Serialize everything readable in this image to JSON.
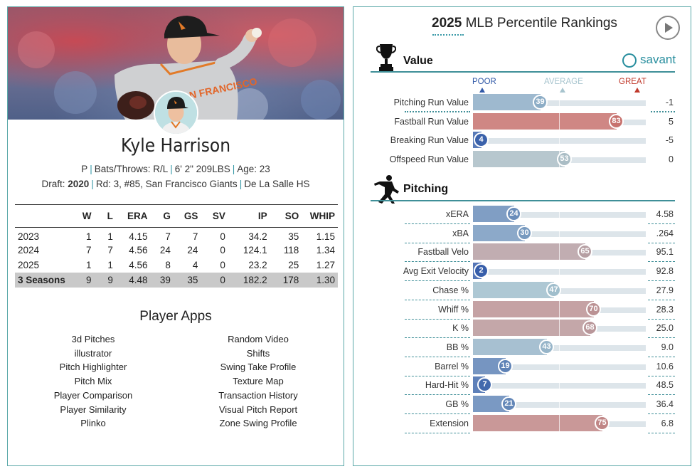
{
  "player": {
    "name": "Kyle Harrison",
    "position": "P",
    "bats_throws": "Bats/Throws: R/L",
    "height_weight": "6' 2\" 209LBS",
    "age": "Age: 23",
    "draft_prefix": "Draft:",
    "draft_year": "2020",
    "draft_pick": "Rd: 3, #85, San Francisco Giants",
    "school": "De La Salle HS",
    "jersey_text": "SAN FRANCISCO"
  },
  "stats_table": {
    "headers": [
      "",
      "W",
      "L",
      "ERA",
      "G",
      "GS",
      "SV",
      "IP",
      "SO",
      "WHIP"
    ],
    "rows": [
      [
        "2023",
        "1",
        "1",
        "4.15",
        "7",
        "7",
        "0",
        "34.2",
        "35",
        "1.15"
      ],
      [
        "2024",
        "7",
        "7",
        "4.56",
        "24",
        "24",
        "0",
        "124.1",
        "118",
        "1.34"
      ],
      [
        "2025",
        "1",
        "1",
        "4.56",
        "8",
        "4",
        "0",
        "23.2",
        "25",
        "1.27"
      ]
    ],
    "total": [
      "3 Seasons",
      "9",
      "9",
      "4.48",
      "39",
      "35",
      "0",
      "182.2",
      "178",
      "1.30"
    ]
  },
  "apps": {
    "title": "Player Apps",
    "left": [
      "3d Pitches",
      "illustrator",
      "Pitch Highlighter",
      "Pitch Mix",
      "Player Comparison",
      "Player Similarity",
      "Plinko"
    ],
    "right": [
      "Random Video",
      "Shifts",
      "Swing Take Profile",
      "Texture Map",
      "Transaction History",
      "Visual Pitch Report",
      "Zone Swing Profile"
    ]
  },
  "rankings": {
    "year": "2025",
    "title": "MLB Percentile Rankings",
    "brand": "savant",
    "scale": {
      "poor": "POOR",
      "average": "AVERAGE",
      "great": "GREAT"
    },
    "value_section": {
      "title": "Value",
      "metrics": [
        {
          "label": "Pitching Run Value",
          "pct": 39,
          "value": "-1"
        },
        {
          "label": "Fastball Run Value",
          "pct": 83,
          "value": "5"
        },
        {
          "label": "Breaking Run Value",
          "pct": 4,
          "value": "-5"
        },
        {
          "label": "Offspeed Run Value",
          "pct": 53,
          "value": "0"
        }
      ]
    },
    "pitching_section": {
      "title": "Pitching",
      "metrics": [
        {
          "label": "xERA",
          "pct": 24,
          "value": "4.58"
        },
        {
          "label": "xBA",
          "pct": 30,
          "value": ".264"
        },
        {
          "label": "Fastball Velo",
          "pct": 65,
          "value": "95.1"
        },
        {
          "label": "Avg Exit Velocity",
          "pct": 2,
          "value": "92.8"
        },
        {
          "label": "Chase %",
          "pct": 47,
          "value": "27.9"
        },
        {
          "label": "Whiff %",
          "pct": 70,
          "value": "28.3"
        },
        {
          "label": "K %",
          "pct": 68,
          "value": "25.0"
        },
        {
          "label": "BB %",
          "pct": 43,
          "value": "9.0"
        },
        {
          "label": "Barrel %",
          "pct": 19,
          "value": "10.6"
        },
        {
          "label": "Hard-Hit %",
          "pct": 7,
          "value": "48.5"
        },
        {
          "label": "GB %",
          "pct": 21,
          "value": "36.4"
        },
        {
          "label": "Extension",
          "pct": 75,
          "value": "6.8"
        }
      ]
    },
    "colors": {
      "poor": "#325aa8",
      "average": "#a7c4ce",
      "great": "#d8473d",
      "accent": "#3f8f98"
    }
  }
}
